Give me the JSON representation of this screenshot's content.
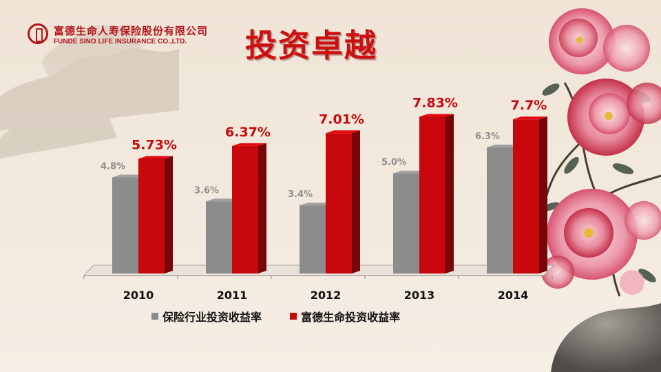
{
  "header": {
    "company_cn": "富德生命人寿保险股份有限公司",
    "company_en": "FUNDE SINO LIFE INSURANCE CO.,LTD.",
    "title": "投资卓越"
  },
  "chart_data": {
    "type": "bar",
    "categories": [
      "2010",
      "2011",
      "2012",
      "2013",
      "2014"
    ],
    "series": [
      {
        "name": "保险行业投资收益率",
        "values": [
          4.8,
          3.6,
          3.4,
          5.0,
          6.3
        ],
        "labels": [
          "4.8%",
          "3.6%",
          "3.4%",
          "5.0%",
          "6.3%"
        ],
        "color": "#8c8c8c"
      },
      {
        "name": "富德生命投资收益率",
        "values": [
          5.73,
          6.37,
          7.01,
          7.83,
          7.7
        ],
        "labels": [
          "5.73%",
          "6.37%",
          "7.01%",
          "7.83%",
          "7.7%"
        ],
        "color": "#c8080d"
      }
    ],
    "ylim": [
      0,
      8.5
    ],
    "grid": false,
    "legend": "bottom"
  },
  "colors": {
    "accent": "#cc1010",
    "gray_series": "#8c8c8c",
    "red_series": "#c8080d",
    "background": "#f3ebdf"
  }
}
